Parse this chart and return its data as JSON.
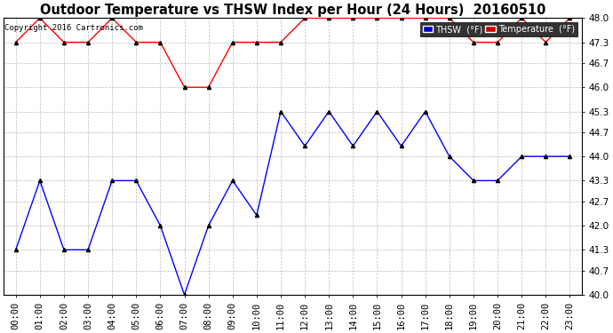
{
  "title": "Outdoor Temperature vs THSW Index per Hour (24 Hours)  20160510",
  "copyright": "Copyright 2016 Cartronics.com",
  "hours": [
    "00:00",
    "01:00",
    "02:00",
    "03:00",
    "04:00",
    "05:00",
    "06:00",
    "07:00",
    "08:00",
    "09:00",
    "10:00",
    "11:00",
    "12:00",
    "13:00",
    "14:00",
    "15:00",
    "16:00",
    "17:00",
    "18:00",
    "19:00",
    "20:00",
    "21:00",
    "22:00",
    "23:00"
  ],
  "thsw": [
    41.3,
    43.3,
    41.3,
    41.3,
    43.3,
    43.3,
    42.0,
    40.0,
    42.0,
    43.3,
    42.3,
    45.3,
    44.3,
    45.3,
    44.3,
    45.3,
    44.3,
    45.3,
    44.0,
    43.3,
    43.3,
    44.0,
    44.0,
    44.0
  ],
  "temperature": [
    47.3,
    48.0,
    47.3,
    47.3,
    48.0,
    47.3,
    47.3,
    46.0,
    46.0,
    47.3,
    47.3,
    47.3,
    48.0,
    48.0,
    48.0,
    48.0,
    48.0,
    48.0,
    48.0,
    47.3,
    47.3,
    48.0,
    47.3,
    48.0
  ],
  "thsw_color": "blue",
  "temp_color": "red",
  "bg_color": "#ffffff",
  "plot_bg": "#ffffff",
  "ylim_min": 40.0,
  "ylim_max": 48.0,
  "yticks": [
    40.0,
    40.7,
    41.3,
    42.0,
    42.7,
    43.3,
    44.0,
    44.7,
    45.3,
    46.0,
    46.7,
    47.3,
    48.0
  ],
  "legend_thsw_label": "THSW  (°F)",
  "legend_temp_label": "Temperature  (°F)",
  "legend_thsw_bg": "#0000cc",
  "legend_temp_bg": "#cc0000",
  "title_fontsize": 10.5,
  "tick_fontsize": 7.5,
  "copyright_fontsize": 6.5,
  "marker": "^",
  "marker_size": 3,
  "linewidth": 1.0
}
